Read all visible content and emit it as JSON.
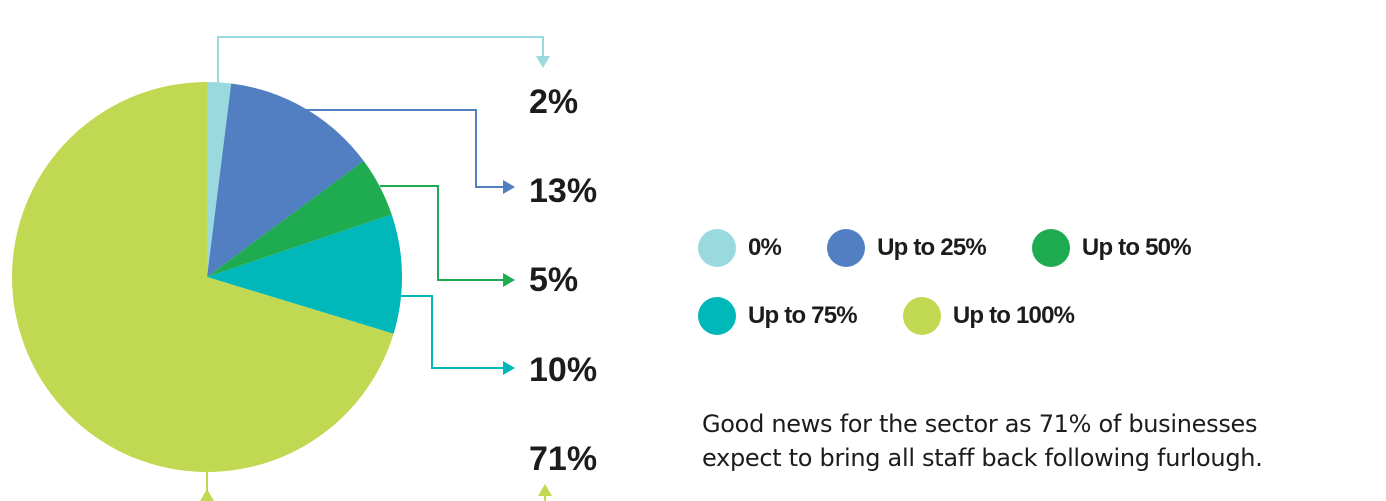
{
  "chart_data": {
    "type": "pie",
    "categories": [
      "0%",
      "Up to 25%",
      "Up to 50%",
      "Up to 75%",
      "Up to 100%"
    ],
    "values": [
      2,
      13,
      5,
      10,
      71
    ],
    "value_labels": [
      "2%",
      "13%",
      "5%",
      "10%",
      "71%"
    ],
    "colors": [
      "#9ad9de",
      "#527ec2",
      "#1fab4f",
      "#00b8ba",
      "#c0d852"
    ],
    "start": "12 o'clock",
    "direction": "clockwise",
    "legend": "right",
    "title": ""
  },
  "legend": {
    "rows": [
      [
        {
          "label": "0%",
          "color": "#9ad9de"
        },
        {
          "label": "Up to 25%",
          "color": "#527ec2"
        },
        {
          "label": "Up to 50%",
          "color": "#1fab4f"
        }
      ],
      [
        {
          "label": "Up to 75%",
          "color": "#00b8ba"
        },
        {
          "label": "Up to 100%",
          "color": "#c0d852"
        }
      ]
    ]
  },
  "caption": {
    "line1": "Good news for the sector as 71% of businesses",
    "line2": "expect to bring all staff back following furlough."
  }
}
